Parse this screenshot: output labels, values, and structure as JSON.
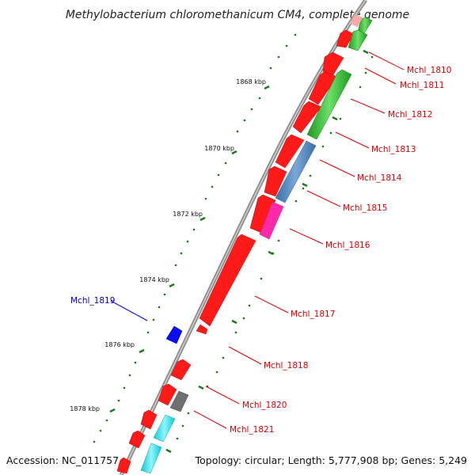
{
  "title": "Methylobacterium chloromethanicum CM4, complete genome",
  "accession": "Accession: NC_011757",
  "topology": "Topology: circular; Length: 5,777,908 bp; Genes: 5,249",
  "colors": {
    "backbone": "#8c8c8c",
    "tick": "#1a7a1a",
    "red": "#ff1a1a",
    "green": "#3cc83c",
    "blue": "#4f86bf",
    "pink": "#ff2aa8",
    "gray": "#6f6f6f",
    "cyan": "#19e6f0",
    "navy": "#0a0aff",
    "label_red": "#dd0000",
    "label_blue": "#0000cc"
  },
  "ticks": {
    "labels": [
      "1868 kbp",
      "1870 kbp",
      "1872 kbp",
      "1874 kbp",
      "1876 kbp",
      "1878 kbp"
    ]
  },
  "genes": [
    {
      "id": "Mchl_1810",
      "label": "Mchl_1810",
      "color": "green"
    },
    {
      "id": "Mchl_1811",
      "label": "Mchl_1811",
      "color": "green"
    },
    {
      "id": "Mchl_1812",
      "label": "Mchl_1812",
      "color": "green"
    },
    {
      "id": "Mchl_1813",
      "label": "Mchl_1813",
      "color": "green"
    },
    {
      "id": "Mchl_1814",
      "label": "Mchl_1814",
      "color": "blue"
    },
    {
      "id": "Mchl_1815",
      "label": "Mchl_1815",
      "color": "blue"
    },
    {
      "id": "Mchl_1816",
      "label": "Mchl_1816",
      "color": "pink"
    },
    {
      "id": "Mchl_1817",
      "label": "Mchl_1817",
      "color": "red"
    },
    {
      "id": "Mchl_1818",
      "label": "Mchl_1818",
      "color": "red"
    },
    {
      "id": "Mchl_1819",
      "label": "Mchl_1819",
      "color": "navy"
    },
    {
      "id": "Mchl_1820",
      "label": "Mchl_1820",
      "color": "gray"
    },
    {
      "id": "Mchl_1821",
      "label": "Mchl_1821",
      "color": "cyan"
    }
  ]
}
